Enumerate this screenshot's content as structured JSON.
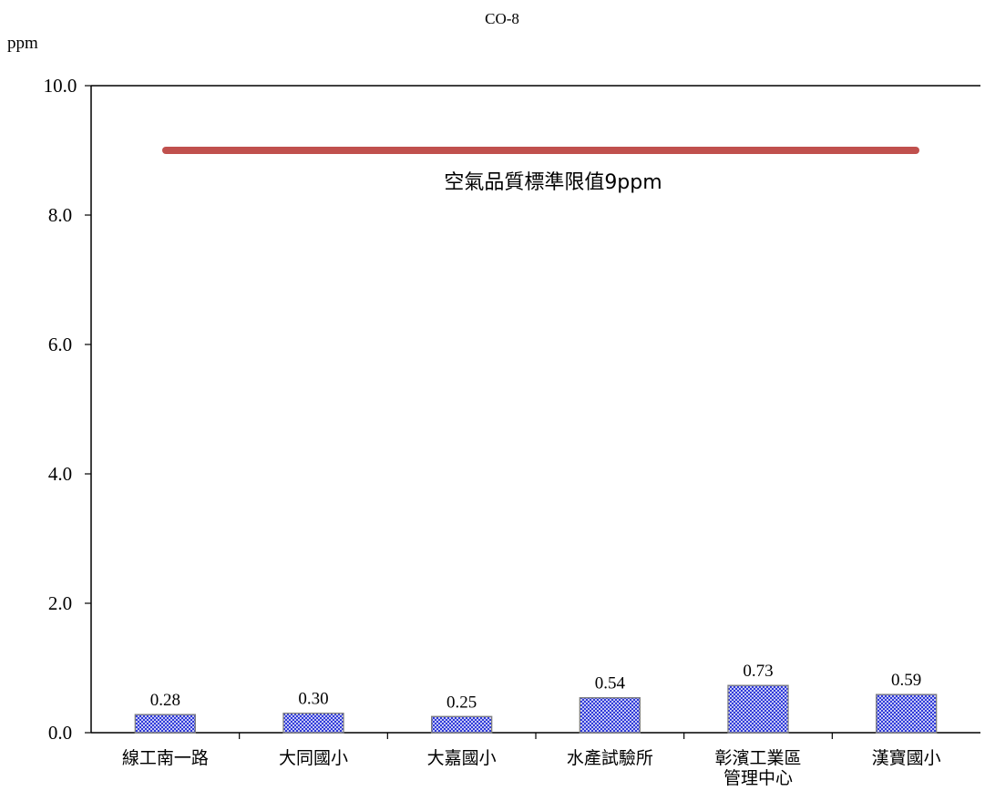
{
  "chart_data": {
    "type": "bar",
    "title": "CO-8",
    "ylabel": "ppm",
    "xlabel": "",
    "ylim": [
      0,
      10
    ],
    "yticks": [
      "0.0",
      "2.0",
      "4.0",
      "6.0",
      "8.0",
      "10.0"
    ],
    "grid": false,
    "categories": [
      [
        "線工南一路"
      ],
      [
        "大同國小"
      ],
      [
        "大嘉國小"
      ],
      [
        "水產試驗所"
      ],
      [
        "彰濱工業區",
        "管理中心"
      ],
      [
        "漢寶國小"
      ]
    ],
    "values": [
      0.28,
      0.3,
      0.25,
      0.54,
      0.73,
      0.59
    ],
    "value_labels": [
      "0.28",
      "0.30",
      "0.25",
      "0.54",
      "0.73",
      "0.59"
    ],
    "reference_line": {
      "value": 9,
      "label": "空氣品質標準限值9ppm",
      "color": "#c0504d"
    },
    "bar_fill_color": "#1f2bd6",
    "bar_stroke_color": "#7f7f7f"
  }
}
